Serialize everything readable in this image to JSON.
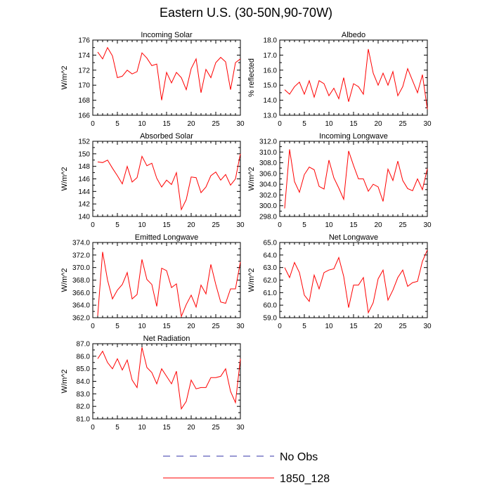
{
  "title": "Eastern U.S. (30-50N,90-70W)",
  "colors": {
    "model": "#ff0000",
    "obs": "#3333aa",
    "axis": "#000000"
  },
  "legend": {
    "entries": [
      {
        "label": "No Obs",
        "style": "dashed",
        "color": "#3333aa"
      },
      {
        "label": "1850_128",
        "style": "solid",
        "color": "#ff0000"
      }
    ]
  },
  "chart_data": [
    {
      "type": "line",
      "title": "Incoming Solar",
      "ylabel": "W/m^2",
      "xlim": [
        0,
        30
      ],
      "ylim": [
        166,
        176
      ],
      "yticks": [
        166,
        168,
        170,
        172,
        174,
        176
      ],
      "ytick_labels": [
        "166",
        "168",
        "170",
        "172",
        "174",
        "176"
      ],
      "xticks": [
        0,
        5,
        10,
        15,
        20,
        25,
        30
      ],
      "xtick_labels": [
        "0",
        "5",
        "10",
        "15",
        "20",
        "25",
        "30"
      ],
      "series": [
        {
          "name": "1850_128",
          "x": [
            1,
            2,
            3,
            4,
            5,
            6,
            7,
            8,
            9,
            10,
            11,
            12,
            13,
            14,
            15,
            16,
            17,
            18,
            19,
            20,
            21,
            22,
            23,
            24,
            25,
            26,
            27,
            28,
            29,
            30
          ],
          "values": [
            174.4,
            173.5,
            175.0,
            173.9,
            171.0,
            171.2,
            172.0,
            171.5,
            171.8,
            174.3,
            173.6,
            172.6,
            172.8,
            168.0,
            171.7,
            170.3,
            171.7,
            171.0,
            169.4,
            172.2,
            173.5,
            169.0,
            172.1,
            171.0,
            173.0,
            173.7,
            173.1,
            169.4,
            173.0,
            173.5
          ]
        }
      ]
    },
    {
      "type": "line",
      "title": "Albedo",
      "ylabel": "% reflected",
      "xlim": [
        0,
        30
      ],
      "ylim": [
        13.0,
        18.0
      ],
      "yticks": [
        13.0,
        14.0,
        15.0,
        16.0,
        17.0,
        18.0
      ],
      "ytick_labels": [
        "13.0",
        "14.0",
        "15.0",
        "16.0",
        "17.0",
        "18.0"
      ],
      "xticks": [
        0,
        5,
        10,
        15,
        20,
        25,
        30
      ],
      "xtick_labels": [
        "0",
        "5",
        "10",
        "15",
        "20",
        "25",
        "30"
      ],
      "series": [
        {
          "name": "1850_128",
          "x": [
            1,
            2,
            3,
            4,
            5,
            6,
            7,
            8,
            9,
            10,
            11,
            12,
            13,
            14,
            15,
            16,
            17,
            18,
            19,
            20,
            21,
            22,
            23,
            24,
            25,
            26,
            27,
            28,
            29,
            30
          ],
          "values": [
            14.7,
            14.4,
            14.9,
            15.2,
            14.4,
            15.3,
            14.2,
            15.3,
            15.1,
            14.3,
            14.8,
            14.1,
            15.5,
            13.9,
            15.1,
            14.9,
            14.4,
            17.4,
            15.8,
            15.0,
            15.8,
            15.0,
            15.9,
            14.3,
            14.9,
            16.1,
            15.3,
            14.5,
            15.7,
            13.4
          ]
        }
      ]
    },
    {
      "type": "line",
      "title": "Absorbed Solar",
      "ylabel": "W/m^2",
      "xlim": [
        0,
        30
      ],
      "ylim": [
        140,
        152
      ],
      "yticks": [
        140,
        142,
        144,
        146,
        148,
        150,
        152
      ],
      "ytick_labels": [
        "140",
        "142",
        "144",
        "146",
        "148",
        "150",
        "152"
      ],
      "xticks": [
        0,
        5,
        10,
        15,
        20,
        25,
        30
      ],
      "xtick_labels": [
        "0",
        "5",
        "10",
        "15",
        "20",
        "25",
        "30"
      ],
      "series": [
        {
          "name": "1850_128",
          "x": [
            1,
            2,
            3,
            4,
            5,
            6,
            7,
            8,
            9,
            10,
            11,
            12,
            13,
            14,
            15,
            16,
            17,
            18,
            19,
            20,
            21,
            22,
            23,
            24,
            25,
            26,
            27,
            28,
            29,
            30
          ],
          "values": [
            148.7,
            148.6,
            149.0,
            147.7,
            146.5,
            145.2,
            148.0,
            145.5,
            146.2,
            149.6,
            148.1,
            148.5,
            146.1,
            144.7,
            145.8,
            145.1,
            147.0,
            141.1,
            142.7,
            146.3,
            146.2,
            143.8,
            144.7,
            146.5,
            147.1,
            145.8,
            146.7,
            145.0,
            146.0,
            150.0
          ]
        }
      ]
    },
    {
      "type": "line",
      "title": "Incoming Longwave",
      "ylabel": "W/m^2",
      "xlim": [
        0,
        30
      ],
      "ylim": [
        298.0,
        312.0
      ],
      "yticks": [
        298.0,
        300.0,
        302.0,
        304.0,
        306.0,
        308.0,
        310.0,
        312.0
      ],
      "ytick_labels": [
        "298.0",
        "300.0",
        "302.0",
        "304.0",
        "306.0",
        "308.0",
        "310.0",
        "312.0"
      ],
      "xticks": [
        0,
        5,
        10,
        15,
        20,
        25,
        30
      ],
      "xtick_labels": [
        "0",
        "5",
        "10",
        "15",
        "20",
        "25",
        "30"
      ],
      "series": [
        {
          "name": "1850_128",
          "x": [
            1,
            2,
            3,
            4,
            5,
            6,
            7,
            8,
            9,
            10,
            11,
            12,
            13,
            14,
            15,
            16,
            17,
            18,
            19,
            20,
            21,
            22,
            23,
            24,
            25,
            26,
            27,
            28,
            29,
            30
          ],
          "values": [
            299.5,
            310.5,
            304.5,
            302.5,
            305.8,
            307.2,
            306.7,
            303.6,
            303.1,
            308.5,
            305.2,
            303.3,
            301.2,
            310.2,
            307.5,
            305.0,
            305.0,
            302.7,
            304.0,
            303.5,
            300.8,
            306.8,
            304.7,
            308.3,
            304.7,
            303.2,
            302.8,
            305.0,
            303.0,
            306.9
          ]
        }
      ]
    },
    {
      "type": "line",
      "title": "Emitted Longwave",
      "ylabel": "W/m^2",
      "xlim": [
        0,
        30
      ],
      "ylim": [
        362.0,
        374.0
      ],
      "yticks": [
        362.0,
        364.0,
        366.0,
        368.0,
        370.0,
        372.0,
        374.0
      ],
      "ytick_labels": [
        "362.0",
        "364.0",
        "366.0",
        "368.0",
        "370.0",
        "372.0",
        "374.0"
      ],
      "xticks": [
        0,
        5,
        10,
        15,
        20,
        25,
        30
      ],
      "xtick_labels": [
        "0",
        "5",
        "10",
        "15",
        "20",
        "25",
        "30"
      ],
      "series": [
        {
          "name": "1850_128",
          "x": [
            1,
            2,
            3,
            4,
            5,
            6,
            7,
            8,
            9,
            10,
            11,
            12,
            13,
            14,
            15,
            16,
            17,
            18,
            19,
            20,
            21,
            22,
            23,
            24,
            25,
            26,
            27,
            28,
            29,
            30
          ],
          "values": [
            362.3,
            372.5,
            368.0,
            365.0,
            366.4,
            367.3,
            369.2,
            365.0,
            365.7,
            371.3,
            368.1,
            367.3,
            363.8,
            369.9,
            369.5,
            366.8,
            367.4,
            362.2,
            364.1,
            365.6,
            363.7,
            367.2,
            365.8,
            370.5,
            367.3,
            364.5,
            364.3,
            366.6,
            366.6,
            370.9
          ]
        }
      ]
    },
    {
      "type": "line",
      "title": "Net Longwave",
      "ylabel": "W/m^2",
      "xlim": [
        0,
        30
      ],
      "ylim": [
        59.0,
        65.0
      ],
      "yticks": [
        59.0,
        60.0,
        61.0,
        62.0,
        63.0,
        64.0,
        65.0
      ],
      "ytick_labels": [
        "59.0",
        "60.0",
        "61.0",
        "62.0",
        "63.0",
        "64.0",
        "65.0"
      ],
      "xticks": [
        0,
        5,
        10,
        15,
        20,
        25,
        30
      ],
      "xtick_labels": [
        "0",
        "5",
        "10",
        "15",
        "20",
        "25",
        "30"
      ],
      "series": [
        {
          "name": "1850_128",
          "x": [
            1,
            2,
            3,
            4,
            5,
            6,
            7,
            8,
            9,
            10,
            11,
            12,
            13,
            14,
            15,
            16,
            17,
            18,
            19,
            20,
            21,
            22,
            23,
            24,
            25,
            26,
            27,
            28,
            29,
            30
          ],
          "values": [
            63.0,
            62.2,
            63.4,
            62.6,
            60.8,
            60.3,
            62.4,
            61.3,
            62.6,
            62.8,
            62.9,
            63.8,
            62.3,
            59.8,
            61.6,
            61.6,
            62.2,
            59.4,
            60.2,
            62.1,
            62.8,
            60.4,
            61.2,
            62.2,
            62.8,
            61.5,
            61.8,
            61.9,
            63.5,
            64.4
          ]
        }
      ]
    },
    {
      "type": "line",
      "title": "Net Radiation",
      "ylabel": "W/m^2",
      "xlim": [
        0,
        30
      ],
      "ylim": [
        81.0,
        87.0
      ],
      "yticks": [
        81.0,
        82.0,
        83.0,
        84.0,
        85.0,
        86.0,
        87.0
      ],
      "ytick_labels": [
        "81.0",
        "82.0",
        "83.0",
        "84.0",
        "85.0",
        "86.0",
        "87.0"
      ],
      "xticks": [
        0,
        5,
        10,
        15,
        20,
        25,
        30
      ],
      "xtick_labels": [
        "0",
        "5",
        "10",
        "15",
        "20",
        "25",
        "30"
      ],
      "series": [
        {
          "name": "1850_128",
          "x": [
            1,
            2,
            3,
            4,
            5,
            6,
            7,
            8,
            9,
            10,
            11,
            12,
            13,
            14,
            15,
            16,
            17,
            18,
            19,
            20,
            21,
            22,
            23,
            24,
            25,
            26,
            27,
            28,
            29,
            30
          ],
          "values": [
            85.8,
            86.4,
            85.5,
            85.0,
            85.8,
            84.9,
            85.7,
            84.1,
            83.5,
            86.7,
            85.1,
            84.7,
            83.8,
            85.0,
            84.4,
            83.8,
            84.8,
            81.8,
            82.4,
            84.1,
            83.4,
            83.5,
            83.5,
            84.3,
            84.3,
            84.4,
            85.0,
            83.2,
            82.3,
            85.8
          ]
        }
      ]
    }
  ]
}
